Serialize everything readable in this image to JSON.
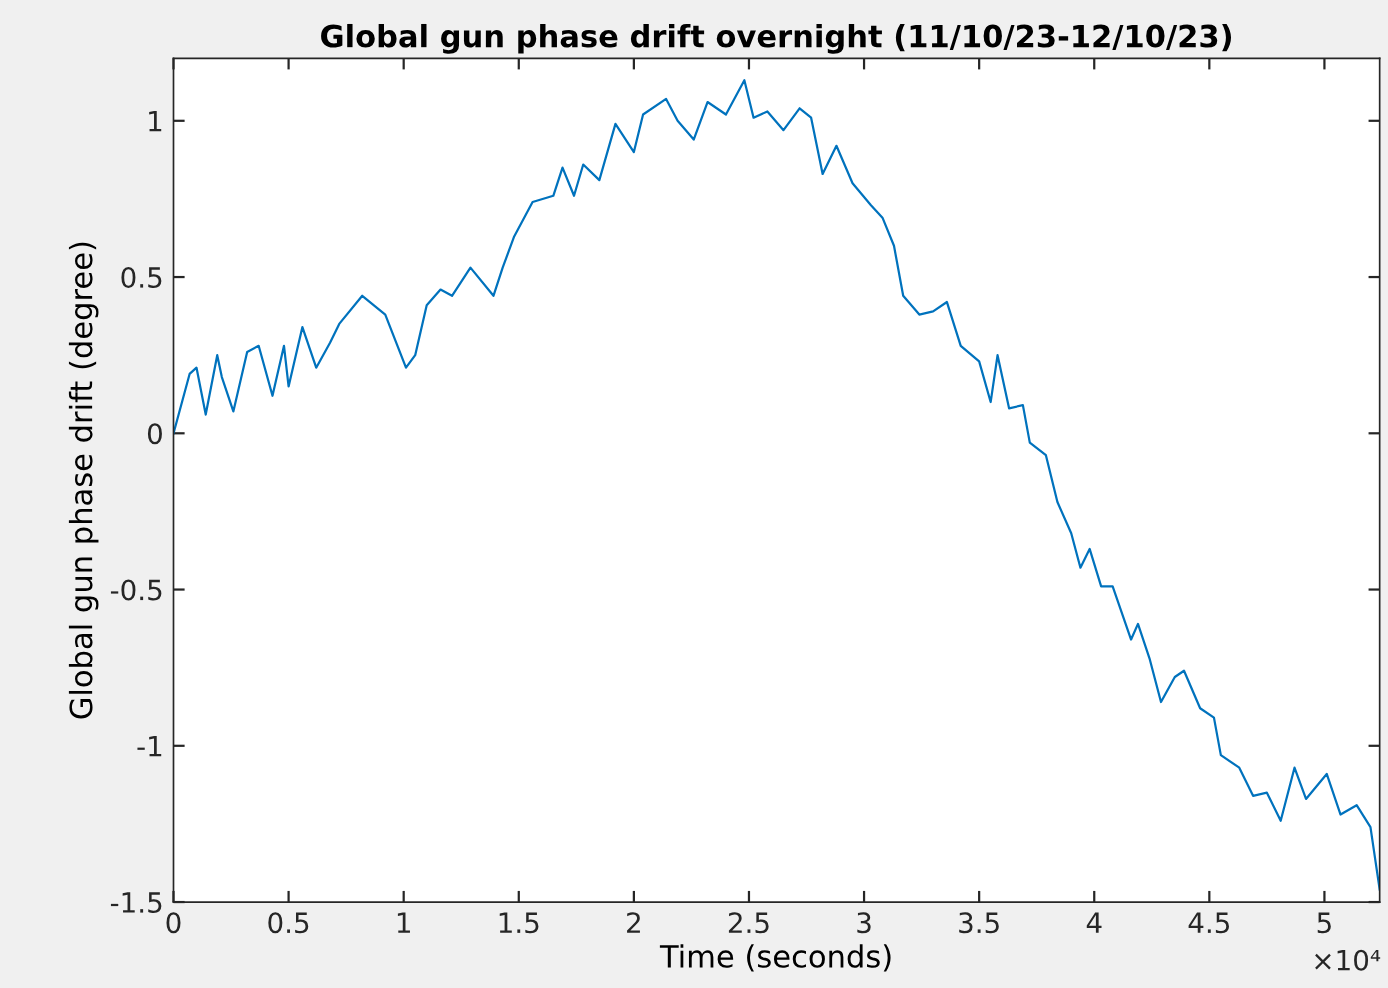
{
  "chart_data": {
    "type": "line",
    "title": "Global gun phase drift overnight (11/10/23-12/10/23)",
    "xlabel": "Time (seconds)",
    "ylabel": "Global gun phase drift (degree)",
    "annotations": [
      "×10⁴"
    ],
    "xlim": [
      0,
      5.24
    ],
    "ylim": [
      -1.5,
      1.2
    ],
    "xticks": [
      0,
      0.5,
      1,
      1.5,
      2,
      2.5,
      3,
      3.5,
      4,
      4.5,
      5
    ],
    "yticks": [
      -1.5,
      -1,
      -0.5,
      0,
      0.5,
      1
    ],
    "grid": false,
    "marker": "none",
    "line_style": "solid",
    "series": [
      {
        "color": "#0072bd",
        "x": [
          0,
          0.07,
          0.1,
          0.14,
          0.19,
          0.21,
          0.26,
          0.32,
          0.37,
          0.43,
          0.48,
          0.5,
          0.56,
          0.62,
          0.68,
          0.72,
          0.82,
          0.92,
          1.01,
          1.05,
          1.1,
          1.16,
          1.21,
          1.29,
          1.39,
          1.43,
          1.48,
          1.56,
          1.65,
          1.69,
          1.74,
          1.78,
          1.85,
          1.92,
          2.0,
          2.04,
          2.14,
          2.19,
          2.26,
          2.32,
          2.4,
          2.48,
          2.52,
          2.58,
          2.65,
          2.72,
          2.77,
          2.82,
          2.88,
          2.95,
          3.03,
          3.08,
          3.13,
          3.17,
          3.24,
          3.3,
          3.36,
          3.42,
          3.5,
          3.55,
          3.58,
          3.63,
          3.69,
          3.72,
          3.79,
          3.84,
          3.9,
          3.94,
          3.98,
          4.03,
          4.08,
          4.16,
          4.19,
          4.24,
          4.29,
          4.35,
          4.39,
          4.46,
          4.52,
          4.55,
          4.63,
          4.69,
          4.75,
          4.81,
          4.87,
          4.92,
          5.01,
          5.07,
          5.14,
          5.2,
          5.24
        ],
        "values": [
          0.0,
          0.19,
          0.21,
          0.06,
          0.25,
          0.18,
          0.07,
          0.26,
          0.28,
          0.12,
          0.28,
          0.15,
          0.34,
          0.21,
          0.29,
          0.35,
          0.44,
          0.38,
          0.21,
          0.25,
          0.41,
          0.46,
          0.44,
          0.53,
          0.44,
          0.53,
          0.63,
          0.74,
          0.76,
          0.85,
          0.76,
          0.86,
          0.81,
          0.99,
          0.9,
          1.02,
          1.07,
          1.0,
          0.94,
          1.06,
          1.02,
          1.13,
          1.01,
          1.03,
          0.97,
          1.04,
          1.01,
          0.83,
          0.92,
          0.8,
          0.73,
          0.69,
          0.6,
          0.44,
          0.38,
          0.39,
          0.42,
          0.28,
          0.23,
          0.1,
          0.25,
          0.08,
          0.09,
          -0.03,
          -0.07,
          -0.22,
          -0.32,
          -0.43,
          -0.37,
          -0.49,
          -0.49,
          -0.66,
          -0.61,
          -0.72,
          -0.86,
          -0.78,
          -0.76,
          -0.88,
          -0.91,
          -1.03,
          -1.07,
          -1.16,
          -1.15,
          -1.24,
          -1.07,
          -1.17,
          -1.09,
          -1.22,
          -1.19,
          -1.26,
          -1.46
        ]
      }
    ]
  }
}
